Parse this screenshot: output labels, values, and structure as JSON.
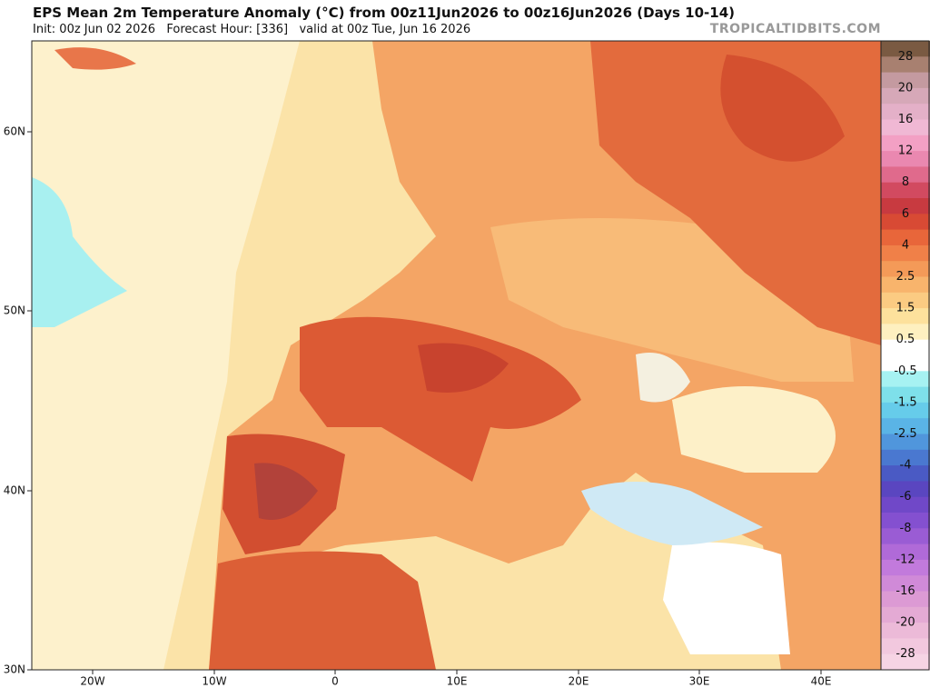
{
  "header": {
    "title": "EPS Mean 2m Temperature Anomaly (°C) from 00z11Jun2026 to 00z16Jun2026 (Days 10-14)",
    "subtitle": "Init: 00z Jun 02 2026   Forecast Hour: [336]   valid at 00z Tue, Jun 16 2026",
    "brand": "TROPICALTIDBITS.COM"
  },
  "map": {
    "lat_labels": [
      "60N",
      "50N",
      "40N",
      "30N"
    ],
    "lon_labels": [
      "20W",
      "10W",
      "0",
      "10E",
      "20E",
      "30E",
      "40E"
    ]
  },
  "colorbar": {
    "labels": [
      "28",
      "20",
      "16",
      "12",
      "8",
      "6",
      "4",
      "2.5",
      "1.5",
      "0.5",
      "-0.5",
      "-1.5",
      "-2.5",
      "-4",
      "-6",
      "-8",
      "-12",
      "-16",
      "-20",
      "-28"
    ]
  }
}
